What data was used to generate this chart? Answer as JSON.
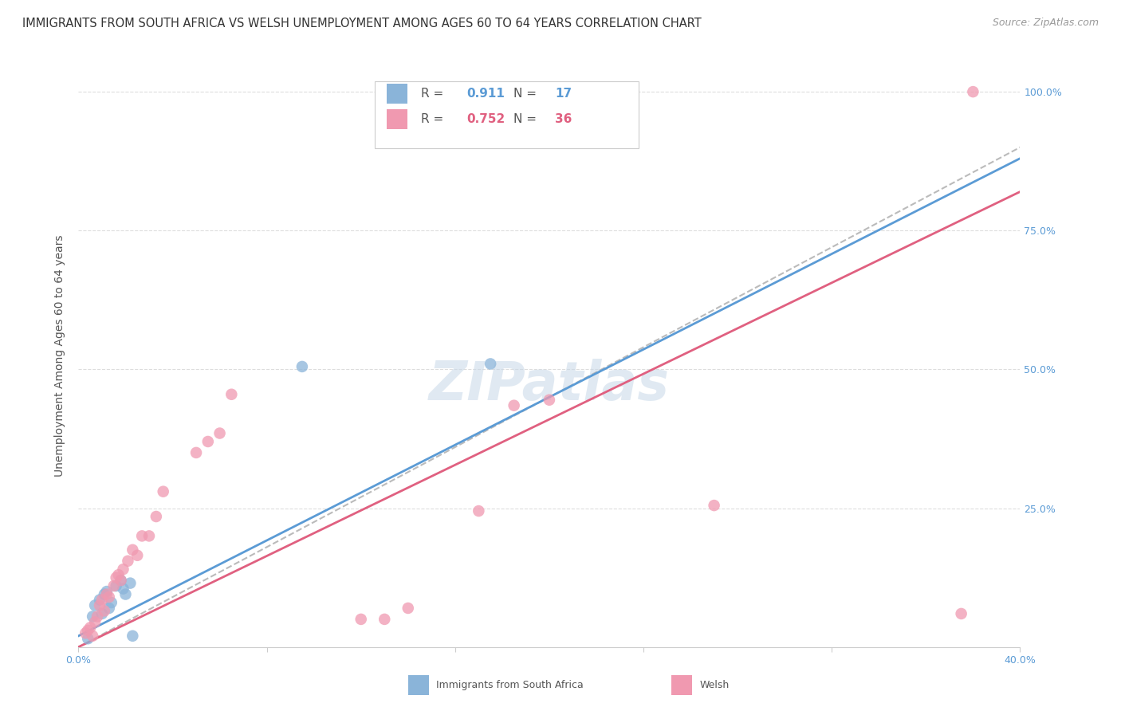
{
  "title": "IMMIGRANTS FROM SOUTH AFRICA VS WELSH UNEMPLOYMENT AMONG AGES 60 TO 64 YEARS CORRELATION CHART",
  "source": "Source: ZipAtlas.com",
  "ylabel": "Unemployment Among Ages 60 to 64 years",
  "xlim": [
    0.0,
    0.4
  ],
  "ylim": [
    0.0,
    1.05
  ],
  "yticks": [
    0.0,
    0.25,
    0.5,
    0.75,
    1.0
  ],
  "ytick_labels": [
    "",
    "25.0%",
    "50.0%",
    "75.0%",
    "100.0%"
  ],
  "xticks": [
    0.0,
    0.08,
    0.16,
    0.24,
    0.32,
    0.4
  ],
  "xtick_labels": [
    "0.0%",
    "",
    "",
    "",
    "",
    "40.0%"
  ],
  "background_color": "#ffffff",
  "grid_color": "#dddddd",
  "title_color": "#333333",
  "source_color": "#999999",
  "blue_color": "#8ab4d9",
  "pink_color": "#f099b0",
  "blue_line_color": "#5b9bd5",
  "pink_line_color": "#e06080",
  "dashed_line_color": "#bbbbbb",
  "tick_color": "#5b9bd5",
  "R_blue": "0.911",
  "N_blue": "17",
  "R_pink": "0.752",
  "N_pink": "36",
  "blue_points_x": [
    0.004,
    0.006,
    0.007,
    0.009,
    0.01,
    0.011,
    0.012,
    0.013,
    0.014,
    0.016,
    0.018,
    0.019,
    0.02,
    0.022,
    0.023,
    0.095,
    0.175
  ],
  "blue_points_y": [
    0.015,
    0.055,
    0.075,
    0.085,
    0.06,
    0.095,
    0.1,
    0.07,
    0.08,
    0.11,
    0.12,
    0.105,
    0.095,
    0.115,
    0.02,
    0.505,
    0.51
  ],
  "pink_points_x": [
    0.003,
    0.004,
    0.005,
    0.006,
    0.007,
    0.008,
    0.009,
    0.01,
    0.011,
    0.012,
    0.013,
    0.015,
    0.016,
    0.017,
    0.018,
    0.019,
    0.021,
    0.023,
    0.025,
    0.027,
    0.03,
    0.033,
    0.036,
    0.05,
    0.055,
    0.06,
    0.065,
    0.12,
    0.13,
    0.14,
    0.17,
    0.185,
    0.2,
    0.27,
    0.375,
    0.38
  ],
  "pink_points_y": [
    0.025,
    0.03,
    0.035,
    0.02,
    0.045,
    0.055,
    0.075,
    0.085,
    0.065,
    0.095,
    0.09,
    0.11,
    0.125,
    0.13,
    0.12,
    0.14,
    0.155,
    0.175,
    0.165,
    0.2,
    0.2,
    0.235,
    0.28,
    0.35,
    0.37,
    0.385,
    0.455,
    0.05,
    0.05,
    0.07,
    0.245,
    0.435,
    0.445,
    0.255,
    0.06,
    1.0
  ],
  "blue_line_x": [
    0.0,
    0.4
  ],
  "blue_line_y": [
    0.02,
    0.88
  ],
  "pink_line_x": [
    0.0,
    0.4
  ],
  "pink_line_y": [
    0.0,
    0.82
  ],
  "dashed_line_x": [
    0.0,
    0.4
  ],
  "dashed_line_y": [
    0.0,
    0.9
  ],
  "watermark": "ZIPatlas",
  "title_fontsize": 10.5,
  "source_fontsize": 9,
  "ylabel_fontsize": 10,
  "tick_fontsize": 9,
  "legend_fontsize": 11,
  "bottom_legend_label_blue": "Immigrants from South Africa",
  "bottom_legend_label_pink": "Welsh"
}
